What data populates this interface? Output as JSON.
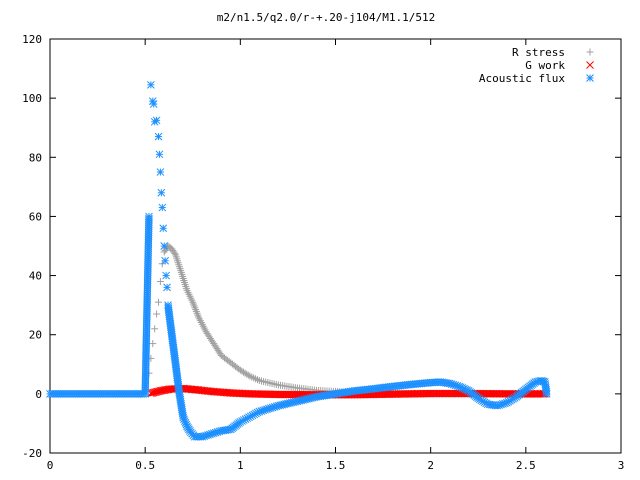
{
  "chart_data": {
    "type": "scatter",
    "title": "m2/n1.5/q2.0/r-+.20-j104/M1.1/512",
    "xlabel": "",
    "ylabel": "",
    "xlim": [
      0,
      3
    ],
    "ylim": [
      -20,
      120
    ],
    "x_ticks": [
      0,
      0.5,
      1,
      1.5,
      2,
      2.5,
      3
    ],
    "x_tick_labels": [
      "0",
      "0.5",
      "1",
      "1.5",
      "2",
      "2.5",
      "3"
    ],
    "y_ticks": [
      -20,
      0,
      20,
      40,
      60,
      80,
      100,
      120
    ],
    "y_tick_labels": [
      "-20",
      "0",
      "20",
      "40",
      "60",
      "80",
      "100",
      "120"
    ],
    "grid": false,
    "legend_position": "top-right",
    "series": [
      {
        "name": "R stress",
        "marker": "plus",
        "color": "#a0a0a0",
        "points": [
          [
            0.5,
            0
          ],
          [
            0.52,
            7
          ],
          [
            0.53,
            12
          ],
          [
            0.54,
            17
          ],
          [
            0.55,
            22
          ],
          [
            0.56,
            27
          ],
          [
            0.57,
            31
          ],
          [
            0.58,
            38
          ],
          [
            0.59,
            44
          ],
          [
            0.6,
            48
          ],
          [
            0.62,
            50
          ],
          [
            0.64,
            49
          ],
          [
            0.66,
            47
          ],
          [
            0.68,
            43
          ],
          [
            0.7,
            39
          ],
          [
            0.72,
            35
          ],
          [
            0.75,
            31
          ],
          [
            0.78,
            26
          ],
          [
            0.82,
            21
          ],
          [
            0.86,
            17
          ],
          [
            0.9,
            13
          ],
          [
            0.95,
            10.5
          ],
          [
            1.0,
            8
          ],
          [
            1.05,
            6
          ],
          [
            1.1,
            4.5
          ],
          [
            1.2,
            3
          ],
          [
            1.3,
            2
          ],
          [
            1.4,
            1.2
          ],
          [
            1.5,
            0.8
          ],
          [
            1.6,
            0.5
          ],
          [
            1.7,
            0.3
          ],
          [
            2.0,
            0.1
          ],
          [
            2.3,
            0.05
          ],
          [
            2.6,
            0
          ]
        ]
      },
      {
        "name": "G work",
        "marker": "cross",
        "color": "#ff0000",
        "points": [
          [
            0.53,
            0.2
          ],
          [
            0.58,
            1
          ],
          [
            0.63,
            1.6
          ],
          [
            0.7,
            1.8
          ],
          [
            0.78,
            1.3
          ],
          [
            0.85,
            0.8
          ],
          [
            0.95,
            0.3
          ],
          [
            1.05,
            0
          ],
          [
            1.2,
            -0.2
          ],
          [
            1.4,
            -0.3
          ],
          [
            1.6,
            -0.3
          ],
          [
            1.8,
            -0.1
          ],
          [
            2.0,
            0.1
          ],
          [
            2.2,
            0.1
          ],
          [
            2.4,
            0
          ],
          [
            2.6,
            0
          ]
        ]
      },
      {
        "name": "Acoustic flux",
        "marker": "star",
        "color": "#1e90ff",
        "points": [
          [
            0.0,
            0
          ],
          [
            0.1,
            0
          ],
          [
            0.2,
            0
          ],
          [
            0.3,
            0
          ],
          [
            0.4,
            0
          ],
          [
            0.5,
            0
          ],
          [
            0.52,
            60
          ],
          [
            0.53,
            104.5
          ],
          [
            0.54,
            99
          ],
          [
            0.545,
            98
          ],
          [
            0.55,
            92
          ],
          [
            0.56,
            92.5
          ],
          [
            0.57,
            87
          ],
          [
            0.575,
            81
          ],
          [
            0.58,
            75
          ],
          [
            0.585,
            68
          ],
          [
            0.59,
            63
          ],
          [
            0.595,
            56
          ],
          [
            0.6,
            50
          ],
          [
            0.605,
            45
          ],
          [
            0.61,
            40
          ],
          [
            0.615,
            36
          ],
          [
            0.62,
            30
          ],
          [
            0.63,
            25
          ],
          [
            0.64,
            20
          ],
          [
            0.65,
            15
          ],
          [
            0.66,
            10
          ],
          [
            0.67,
            5
          ],
          [
            0.68,
            0
          ],
          [
            0.69,
            -4
          ],
          [
            0.7,
            -8
          ],
          [
            0.72,
            -11
          ],
          [
            0.74,
            -13
          ],
          [
            0.76,
            -14.5
          ],
          [
            0.8,
            -14.5
          ],
          [
            0.85,
            -13.5
          ],
          [
            0.9,
            -12.5
          ],
          [
            0.95,
            -12
          ],
          [
            1.0,
            -9.5
          ],
          [
            1.1,
            -6
          ],
          [
            1.2,
            -4
          ],
          [
            1.3,
            -2.5
          ],
          [
            1.4,
            -1
          ],
          [
            1.5,
            0
          ],
          [
            1.6,
            1
          ],
          [
            1.7,
            1.7
          ],
          [
            1.8,
            2.5
          ],
          [
            1.9,
            3.2
          ],
          [
            2.0,
            3.8
          ],
          [
            2.05,
            4
          ],
          [
            2.1,
            3.5
          ],
          [
            2.15,
            2.5
          ],
          [
            2.2,
            1
          ],
          [
            2.25,
            -1.5
          ],
          [
            2.3,
            -3.5
          ],
          [
            2.35,
            -4
          ],
          [
            2.4,
            -3
          ],
          [
            2.45,
            -1
          ],
          [
            2.5,
            1.5
          ],
          [
            2.55,
            4
          ],
          [
            2.58,
            4.5
          ],
          [
            2.6,
            4
          ],
          [
            2.61,
            0
          ]
        ]
      }
    ]
  }
}
